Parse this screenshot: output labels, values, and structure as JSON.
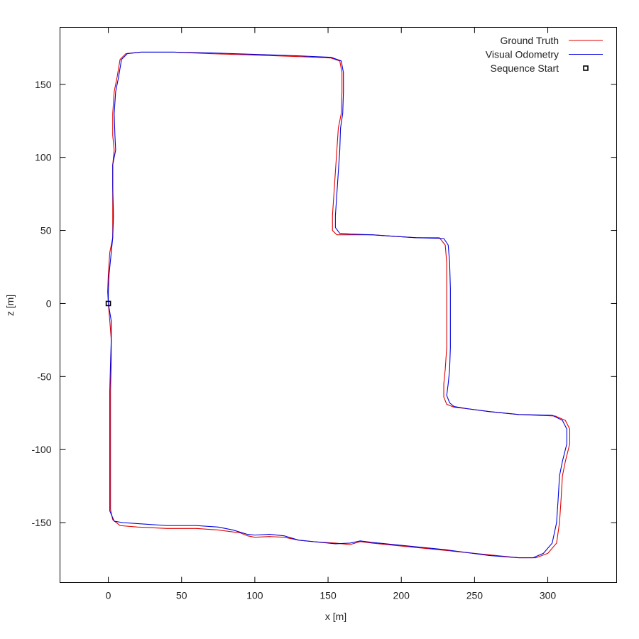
{
  "chart_data": {
    "type": "line",
    "xlabel": "x [m]",
    "ylabel": "z [m]",
    "xlim": [
      -33,
      347
    ],
    "ylim": [
      -191,
      189
    ],
    "xticks": [
      0,
      50,
      100,
      150,
      200,
      250,
      300
    ],
    "yticks": [
      -150,
      -100,
      -50,
      0,
      50,
      100,
      150
    ],
    "grid": false,
    "legend_position": "top-right",
    "colors": {
      "ground_truth": "#e00000",
      "visual_odometry": "#0000e0",
      "marker": "#000000"
    },
    "series": [
      {
        "name": "Ground Truth",
        "color": "#e00000",
        "points": [
          [
            0,
            0
          ],
          [
            1,
            -12
          ],
          [
            2,
            -25
          ],
          [
            2,
            -40
          ],
          [
            1.5,
            -60
          ],
          [
            1.5,
            -90
          ],
          [
            1.5,
            -120
          ],
          [
            1.5,
            -141
          ],
          [
            3,
            -148
          ],
          [
            8,
            -152
          ],
          [
            20,
            -153
          ],
          [
            40,
            -154
          ],
          [
            60,
            -154
          ],
          [
            75,
            -155
          ],
          [
            90,
            -157
          ],
          [
            95,
            -159
          ],
          [
            100,
            -160
          ],
          [
            110,
            -159.5
          ],
          [
            120,
            -160
          ],
          [
            130,
            -162
          ],
          [
            140,
            -163
          ],
          [
            155,
            -164
          ],
          [
            165,
            -165
          ],
          [
            172,
            -163
          ],
          [
            180,
            -164
          ],
          [
            200,
            -166
          ],
          [
            230,
            -169
          ],
          [
            260,
            -172
          ],
          [
            280,
            -174
          ],
          [
            292,
            -174
          ],
          [
            300,
            -171
          ],
          [
            306,
            -164
          ],
          [
            308,
            -150
          ],
          [
            309,
            -135
          ],
          [
            310,
            -118
          ],
          [
            312,
            -108
          ],
          [
            315,
            -96
          ],
          [
            315,
            -86
          ],
          [
            312,
            -80
          ],
          [
            305,
            -77
          ],
          [
            280,
            -76
          ],
          [
            260,
            -74
          ],
          [
            245,
            -72
          ],
          [
            236,
            -71
          ],
          [
            231,
            -69
          ],
          [
            229,
            -64
          ],
          [
            229,
            -55
          ],
          [
            230,
            -45
          ],
          [
            231,
            -30
          ],
          [
            231,
            -10
          ],
          [
            231,
            10
          ],
          [
            231,
            28
          ],
          [
            230,
            40
          ],
          [
            226,
            45
          ],
          [
            210,
            45
          ],
          [
            195,
            46
          ],
          [
            180,
            47
          ],
          [
            165,
            47
          ],
          [
            156,
            47
          ],
          [
            153,
            50
          ],
          [
            153,
            60
          ],
          [
            154,
            75
          ],
          [
            155,
            90
          ],
          [
            156,
            105
          ],
          [
            157,
            120
          ],
          [
            159,
            130
          ],
          [
            159.5,
            145
          ],
          [
            159.5,
            158
          ],
          [
            158,
            166
          ],
          [
            152,
            168
          ],
          [
            130,
            169
          ],
          [
            100,
            170
          ],
          [
            70,
            171
          ],
          [
            45,
            172
          ],
          [
            22,
            172
          ],
          [
            12,
            171
          ],
          [
            8,
            167
          ],
          [
            6,
            155
          ],
          [
            4,
            145
          ],
          [
            3,
            130
          ],
          [
            3,
            115
          ],
          [
            4,
            105
          ],
          [
            3,
            95
          ],
          [
            3,
            80
          ],
          [
            3,
            60
          ],
          [
            3,
            45
          ],
          [
            1,
            35
          ],
          [
            0,
            20
          ],
          [
            -0.5,
            8
          ],
          [
            0,
            0
          ]
        ]
      },
      {
        "name": "Visual Odometry",
        "color": "#0000e0",
        "points": [
          [
            0,
            0
          ],
          [
            2,
            -12
          ],
          [
            2,
            -25
          ],
          [
            1.5,
            -40
          ],
          [
            1,
            -60
          ],
          [
            1,
            -90
          ],
          [
            1,
            -120
          ],
          [
            1,
            -142
          ],
          [
            4,
            -149
          ],
          [
            10,
            -150
          ],
          [
            25,
            -151
          ],
          [
            40,
            -152
          ],
          [
            60,
            -152
          ],
          [
            75,
            -153
          ],
          [
            85,
            -155
          ],
          [
            95,
            -158
          ],
          [
            100,
            -158.5
          ],
          [
            110,
            -158
          ],
          [
            120,
            -159
          ],
          [
            130,
            -162
          ],
          [
            140,
            -163
          ],
          [
            155,
            -164.5
          ],
          [
            165,
            -164
          ],
          [
            172,
            -162.5
          ],
          [
            180,
            -163.5
          ],
          [
            200,
            -165.5
          ],
          [
            230,
            -168.5
          ],
          [
            260,
            -172.5
          ],
          [
            280,
            -174
          ],
          [
            290,
            -174
          ],
          [
            297,
            -171
          ],
          [
            303,
            -164
          ],
          [
            306,
            -150
          ],
          [
            307,
            -135
          ],
          [
            308,
            -118
          ],
          [
            310,
            -108
          ],
          [
            313,
            -96
          ],
          [
            313,
            -86
          ],
          [
            310,
            -80
          ],
          [
            303,
            -76.5
          ],
          [
            280,
            -76
          ],
          [
            260,
            -74
          ],
          [
            245,
            -72
          ],
          [
            236,
            -70.5
          ],
          [
            233,
            -68
          ],
          [
            231,
            -63
          ],
          [
            232,
            -55
          ],
          [
            233,
            -45
          ],
          [
            233.5,
            -30
          ],
          [
            233.5,
            -10
          ],
          [
            233.5,
            10
          ],
          [
            233,
            28
          ],
          [
            232,
            40
          ],
          [
            229,
            44.5
          ],
          [
            210,
            45
          ],
          [
            195,
            46
          ],
          [
            180,
            47
          ],
          [
            165,
            47.5
          ],
          [
            158,
            48
          ],
          [
            155,
            52
          ],
          [
            155,
            60
          ],
          [
            156,
            75
          ],
          [
            157,
            90
          ],
          [
            158,
            105
          ],
          [
            158.5,
            120
          ],
          [
            160,
            130
          ],
          [
            160.5,
            145
          ],
          [
            160.5,
            158
          ],
          [
            159,
            166
          ],
          [
            152,
            168.5
          ],
          [
            130,
            169.5
          ],
          [
            100,
            170.5
          ],
          [
            70,
            171.5
          ],
          [
            45,
            172
          ],
          [
            22,
            172
          ],
          [
            13,
            171
          ],
          [
            9,
            167
          ],
          [
            7,
            155
          ],
          [
            5,
            145
          ],
          [
            4,
            130
          ],
          [
            4.5,
            115
          ],
          [
            5,
            105
          ],
          [
            3,
            95
          ],
          [
            3,
            80
          ],
          [
            3.5,
            60
          ],
          [
            3,
            45
          ],
          [
            2,
            35
          ],
          [
            0.5,
            20
          ],
          [
            0,
            8
          ],
          [
            0,
            0
          ]
        ]
      }
    ],
    "markers": [
      {
        "name": "Sequence Start",
        "x": 0,
        "y": 0
      }
    ]
  }
}
